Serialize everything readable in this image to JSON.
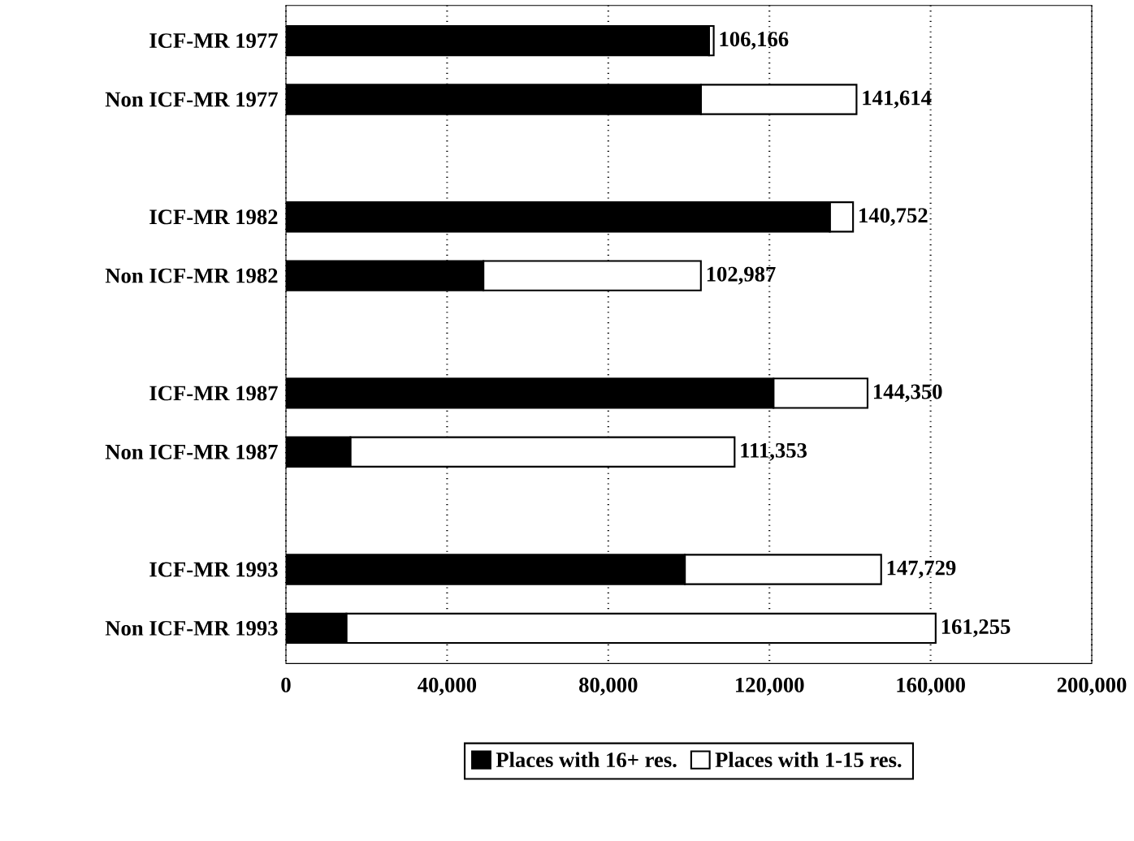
{
  "chart_data": {
    "type": "bar",
    "orientation": "horizontal",
    "stacked": true,
    "categories": [
      "ICF-MR 1977",
      "Non ICF-MR 1977",
      null,
      "ICF-MR 1982",
      "Non ICF-MR 1982",
      null,
      "ICF-MR 1987",
      "Non ICF-MR 1987",
      null,
      "ICF-MR 1993",
      "Non ICF-MR 1993"
    ],
    "series": [
      {
        "name": "Places with 16+ res.",
        "color": "#000000",
        "values": [
          105000,
          103000,
          null,
          135000,
          49000,
          null,
          121000,
          16000,
          null,
          99000,
          15000
        ]
      },
      {
        "name": "Places with 1-15 res.",
        "color": "#ffffff",
        "values": [
          1166,
          38614,
          null,
          5752,
          53987,
          null,
          23350,
          95353,
          null,
          48729,
          146255
        ]
      }
    ],
    "totals": [
      "106,166",
      "141,614",
      null,
      "140,752",
      "102,987",
      null,
      "144,350",
      "111,353",
      null,
      "147,729",
      "161,255"
    ],
    "xlim": [
      0,
      200000
    ],
    "xticks": [
      0,
      {
        "value": 40000,
        "label": "40,000"
      },
      {
        "value": 80000,
        "label": "80,000"
      },
      {
        "value": 120000,
        "label": "120,000"
      },
      {
        "value": 160000,
        "label": "160,000"
      },
      {
        "value": 200000,
        "label": "200,000"
      }
    ],
    "grid": "x",
    "legend": "bottom"
  }
}
